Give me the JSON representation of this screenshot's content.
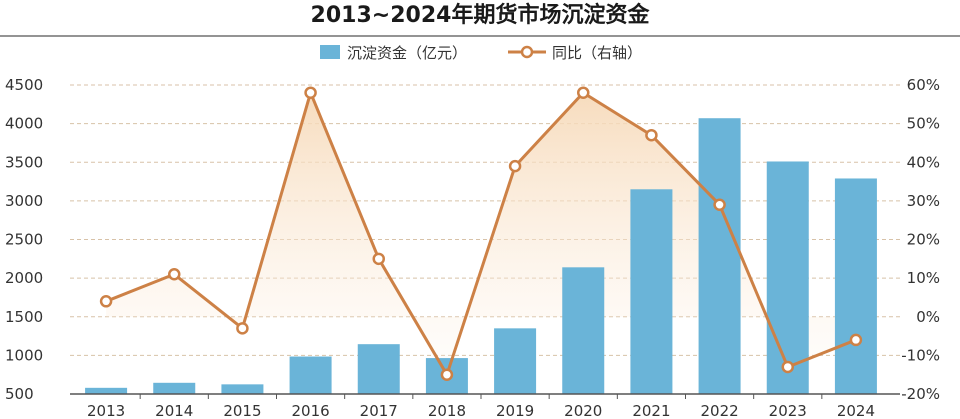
{
  "chart_data": {
    "type": "bar",
    "title": "2013~2024年期货市场沉淀资金",
    "categories": [
      "2013",
      "2014",
      "2015",
      "2016",
      "2017",
      "2018",
      "2019",
      "2020",
      "2021",
      "2022",
      "2023",
      "2024"
    ],
    "series": [
      {
        "name": "沉淀资金（亿元）",
        "type": "bar",
        "axis": "left",
        "color": "#6ab4d8",
        "values": [
          580,
          645,
          625,
          985,
          1145,
          965,
          1350,
          2140,
          3150,
          4070,
          3510,
          3290
        ]
      },
      {
        "name": "同比（右轴）",
        "type": "line",
        "axis": "right",
        "unit": "%",
        "color": "#cd8146",
        "values": [
          4,
          11,
          -3,
          58,
          15,
          -15,
          39,
          58,
          47,
          29,
          -13,
          -6
        ]
      }
    ],
    "y_left": {
      "min": 500,
      "max": 4500,
      "ticks": [
        "4500",
        "4000",
        "3500",
        "3000",
        "2500",
        "2000",
        "1500",
        "1000",
        "500"
      ]
    },
    "y_right": {
      "min": -20,
      "max": 60,
      "ticks": [
        "60%",
        "50%",
        "40%",
        "30%",
        "20%",
        "10%",
        "0%",
        "-10%",
        "-20%"
      ]
    },
    "grid": true,
    "legend_position": "top-center"
  }
}
